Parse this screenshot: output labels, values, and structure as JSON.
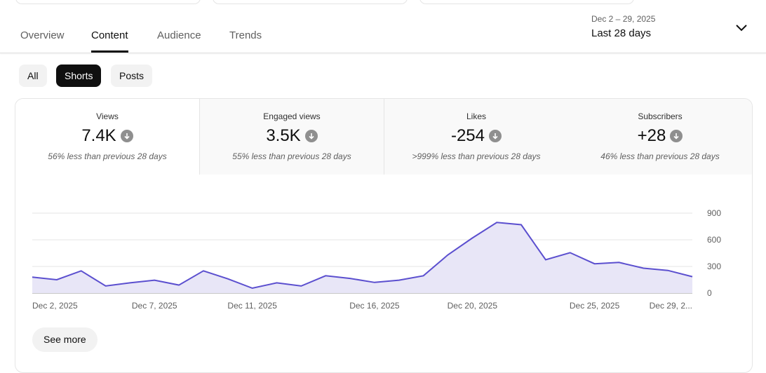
{
  "header": {
    "tabs": [
      {
        "label": "Overview"
      },
      {
        "label": "Content"
      },
      {
        "label": "Audience"
      },
      {
        "label": "Trends"
      }
    ],
    "active_tab": "Content",
    "date_range": "Dec 2 – 29, 2025",
    "date_label": "Last 28 days"
  },
  "filters": {
    "chips": [
      {
        "label": "All"
      },
      {
        "label": "Shorts"
      },
      {
        "label": "Posts"
      }
    ],
    "active": "Shorts"
  },
  "metrics": [
    {
      "title": "Views",
      "value": "7.4K",
      "note": "56% less than previous 28 days",
      "direction": "down"
    },
    {
      "title": "Engaged views",
      "value": "3.5K",
      "note": "55% less than previous 28 days",
      "direction": "down"
    },
    {
      "title": "Likes",
      "value": "-254",
      "note": ">999% less than previous 28 days",
      "direction": "down"
    },
    {
      "title": "Subscribers",
      "value": "+28",
      "note": "46% less than previous 28 days",
      "direction": "down"
    }
  ],
  "see_more_label": "See more",
  "colors": {
    "accent": "#5b4fcf",
    "fill": "#e8e6f7",
    "chip_active": "#0f0f0f"
  },
  "chart_data": {
    "type": "area",
    "x_tick_labels": [
      "Dec 2, 2025",
      "Dec 7, 2025",
      "Dec 11, 2025",
      "Dec 16, 2025",
      "Dec 20, 2025",
      "Dec 25, 2025",
      "Dec 29, 2..."
    ],
    "y_ticks": [
      "0",
      "300",
      "600",
      "900"
    ],
    "ylim": [
      0,
      900
    ],
    "y_axis_side": "right",
    "grid": true,
    "x": [
      "Dec 2",
      "Dec 3",
      "Dec 4",
      "Dec 5",
      "Dec 6",
      "Dec 7",
      "Dec 8",
      "Dec 9",
      "Dec 10",
      "Dec 11",
      "Dec 12",
      "Dec 13",
      "Dec 14",
      "Dec 15",
      "Dec 16",
      "Dec 17",
      "Dec 18",
      "Dec 19",
      "Dec 20",
      "Dec 21",
      "Dec 22",
      "Dec 23",
      "Dec 24",
      "Dec 25",
      "Dec 26",
      "Dec 27",
      "Dec 28",
      "Dec 29"
    ],
    "values": [
      180,
      150,
      250,
      80,
      115,
      145,
      90,
      250,
      160,
      55,
      115,
      80,
      195,
      165,
      120,
      145,
      195,
      430,
      620,
      795,
      770,
      375,
      455,
      330,
      345,
      280,
      255,
      185
    ]
  }
}
